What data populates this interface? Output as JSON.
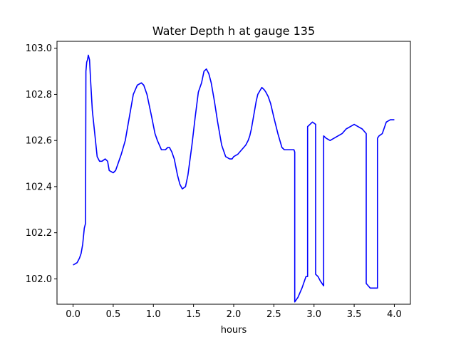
{
  "chart_data": {
    "type": "line",
    "title": "Water Depth h at gauge 135",
    "xlabel": "hours",
    "ylabel": "",
    "xlim": [
      -0.2,
      4.2
    ],
    "ylim": [
      101.89,
      103.03
    ],
    "xticks": [
      "0.0",
      "0.5",
      "1.0",
      "1.5",
      "2.0",
      "2.5",
      "3.0",
      "3.5",
      "4.0"
    ],
    "yticks": [
      "102.0",
      "102.2",
      "102.4",
      "102.6",
      "102.8",
      "103.0"
    ],
    "grid": false,
    "colors": {
      "line": "#0000ff",
      "axes": "#000000",
      "background": "#ffffff"
    },
    "series": [
      {
        "x": [
          0.0,
          0.05,
          0.08,
          0.1,
          0.12,
          0.14,
          0.155,
          0.16,
          0.17,
          0.18,
          0.19,
          0.205,
          0.22,
          0.24,
          0.27,
          0.3,
          0.33,
          0.36,
          0.4,
          0.43,
          0.45,
          0.5,
          0.53,
          0.55,
          0.57,
          0.6,
          0.65,
          0.7,
          0.75,
          0.8,
          0.85,
          0.88,
          0.92,
          0.95,
          0.98,
          1.02,
          1.05,
          1.1,
          1.15,
          1.18,
          1.2,
          1.23,
          1.26,
          1.3,
          1.33,
          1.36,
          1.4,
          1.43,
          1.48,
          1.52,
          1.56,
          1.6,
          1.63,
          1.66,
          1.69,
          1.72,
          1.76,
          1.8,
          1.85,
          1.9,
          1.95,
          1.98,
          2.0,
          2.05,
          2.1,
          2.15,
          2.18,
          2.2,
          2.22,
          2.25,
          2.28,
          2.3,
          2.35,
          2.38,
          2.4,
          2.43,
          2.46,
          2.5,
          2.55,
          2.6,
          2.63,
          2.67,
          2.7,
          2.75,
          2.76,
          2.76,
          2.8,
          2.85,
          2.9,
          2.92,
          2.92,
          2.95,
          2.98,
          3.02,
          3.02,
          3.05,
          3.08,
          3.12,
          3.12,
          3.15,
          3.2,
          3.25,
          3.3,
          3.35,
          3.4,
          3.45,
          3.5,
          3.55,
          3.6,
          3.65,
          3.65,
          3.7,
          3.75,
          3.79,
          3.79,
          3.81,
          3.85,
          3.9,
          3.95,
          4.0
        ],
        "y": [
          102.06,
          102.07,
          102.09,
          102.11,
          102.15,
          102.22,
          102.24,
          102.9,
          102.94,
          102.95,
          102.97,
          102.95,
          102.85,
          102.73,
          102.63,
          102.53,
          102.51,
          102.51,
          102.52,
          102.51,
          102.47,
          102.46,
          102.47,
          102.49,
          102.51,
          102.54,
          102.6,
          102.7,
          102.8,
          102.84,
          102.85,
          102.84,
          102.8,
          102.75,
          102.7,
          102.63,
          102.6,
          102.56,
          102.56,
          102.57,
          102.57,
          102.55,
          102.52,
          102.45,
          102.41,
          102.39,
          102.4,
          102.45,
          102.58,
          102.7,
          102.81,
          102.85,
          102.9,
          102.91,
          102.89,
          102.85,
          102.77,
          102.68,
          102.58,
          102.53,
          102.52,
          102.52,
          102.53,
          102.54,
          102.56,
          102.58,
          102.6,
          102.62,
          102.65,
          102.71,
          102.77,
          102.8,
          102.83,
          102.82,
          102.81,
          102.79,
          102.76,
          102.7,
          102.63,
          102.57,
          102.56,
          102.56,
          102.56,
          102.56,
          102.55,
          101.9,
          101.92,
          101.96,
          102.01,
          102.01,
          102.66,
          102.67,
          102.68,
          102.67,
          102.02,
          102.01,
          101.99,
          101.97,
          102.62,
          102.61,
          102.6,
          102.61,
          102.62,
          102.63,
          102.65,
          102.66,
          102.67,
          102.66,
          102.65,
          102.63,
          101.98,
          101.96,
          101.96,
          101.96,
          102.61,
          102.62,
          102.63,
          102.68,
          102.69,
          102.69
        ]
      }
    ]
  }
}
